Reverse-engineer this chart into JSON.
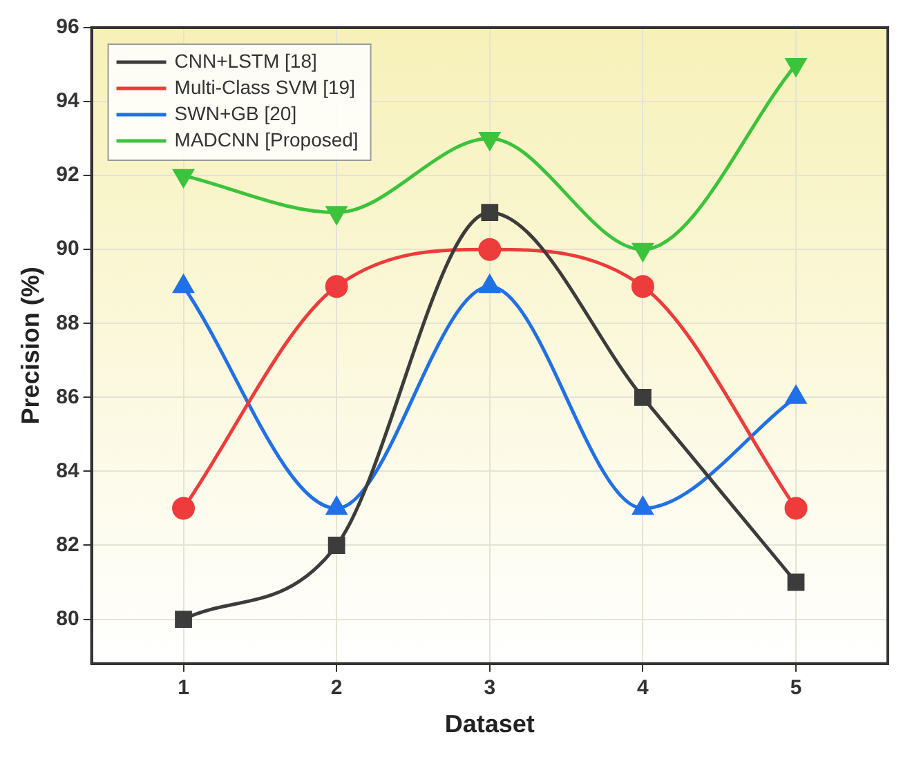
{
  "chart_data": {
    "type": "line",
    "xlabel": "Dataset",
    "ylabel": "Precision (%)",
    "x": [
      1,
      2,
      3,
      4,
      5
    ],
    "xlim": [
      0.4,
      5.6
    ],
    "xticks": [
      1,
      2,
      3,
      4,
      5
    ],
    "ylim": [
      78.8,
      96
    ],
    "yticks": [
      80,
      82,
      84,
      86,
      88,
      90,
      92,
      94,
      96
    ],
    "grid": true,
    "legend": "top left",
    "series": [
      {
        "name": "CNN+LSTM [18]",
        "color": "#3c3c3c",
        "marker": "square",
        "values": [
          80,
          82,
          91,
          86,
          81
        ]
      },
      {
        "name": "Multi-Class SVM [19]",
        "color": "#ee3b3b",
        "marker": "circle",
        "values": [
          83,
          89,
          90,
          89,
          83
        ]
      },
      {
        "name": "SWN+GB [20]",
        "color": "#2070e8",
        "marker": "triangle",
        "values": [
          89,
          83,
          89,
          83,
          86
        ]
      },
      {
        "name": "MADCNN [Proposed]",
        "color": "#3cc33c",
        "marker": "triangle-down",
        "values": [
          92,
          91,
          93,
          90,
          95
        ]
      }
    ]
  }
}
